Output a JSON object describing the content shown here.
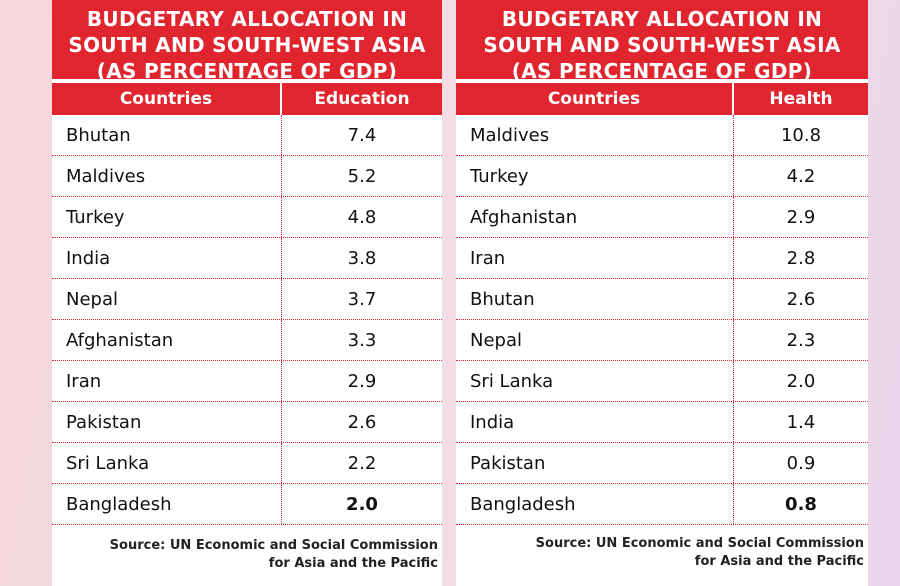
{
  "tables": [
    {
      "title": "BUDGETARY ALLOCATION IN\nSOUTH AND SOUTH-WEST ASIA\n(AS PERCENTAGE OF GDP)",
      "headers": [
        "Countries",
        "Education"
      ],
      "rows": [
        [
          "Bhutan",
          "7.4"
        ],
        [
          "Maldives",
          "5.2"
        ],
        [
          "Turkey",
          "4.8"
        ],
        [
          "India",
          "3.8"
        ],
        [
          "Nepal",
          "3.7"
        ],
        [
          "Afghanistan",
          "3.3"
        ],
        [
          "Iran",
          "2.9"
        ],
        [
          "Pakistan",
          "2.6"
        ],
        [
          "Sri Lanka",
          "2.2"
        ],
        [
          "Bangladesh",
          "2.0"
        ]
      ],
      "source": "Source: UN Economic and Social Commission\nfor Asia and the Pacific"
    },
    {
      "title": "BUDGETARY ALLOCATION IN\nSOUTH AND SOUTH-WEST ASIA\n(AS PERCENTAGE OF GDP)",
      "headers": [
        "Countries",
        "Health"
      ],
      "rows": [
        [
          "Maldives",
          "10.8"
        ],
        [
          "Turkey",
          "4.2"
        ],
        [
          "Afghanistan",
          "2.9"
        ],
        [
          "Iran",
          "2.8"
        ],
        [
          "Bhutan",
          "2.6"
        ],
        [
          "Nepal",
          "2.3"
        ],
        [
          "Sri Lanka",
          "2.0"
        ],
        [
          "India",
          "1.4"
        ],
        [
          "Pakistan",
          "0.9"
        ],
        [
          "Bangladesh",
          "0.8"
        ]
      ],
      "source": "Source: UN Economic and Social Commission\nfor Asia and the Pacific"
    }
  ],
  "colors": {
    "accent_red": "#e0252e",
    "row_divider": "#e0252e"
  }
}
